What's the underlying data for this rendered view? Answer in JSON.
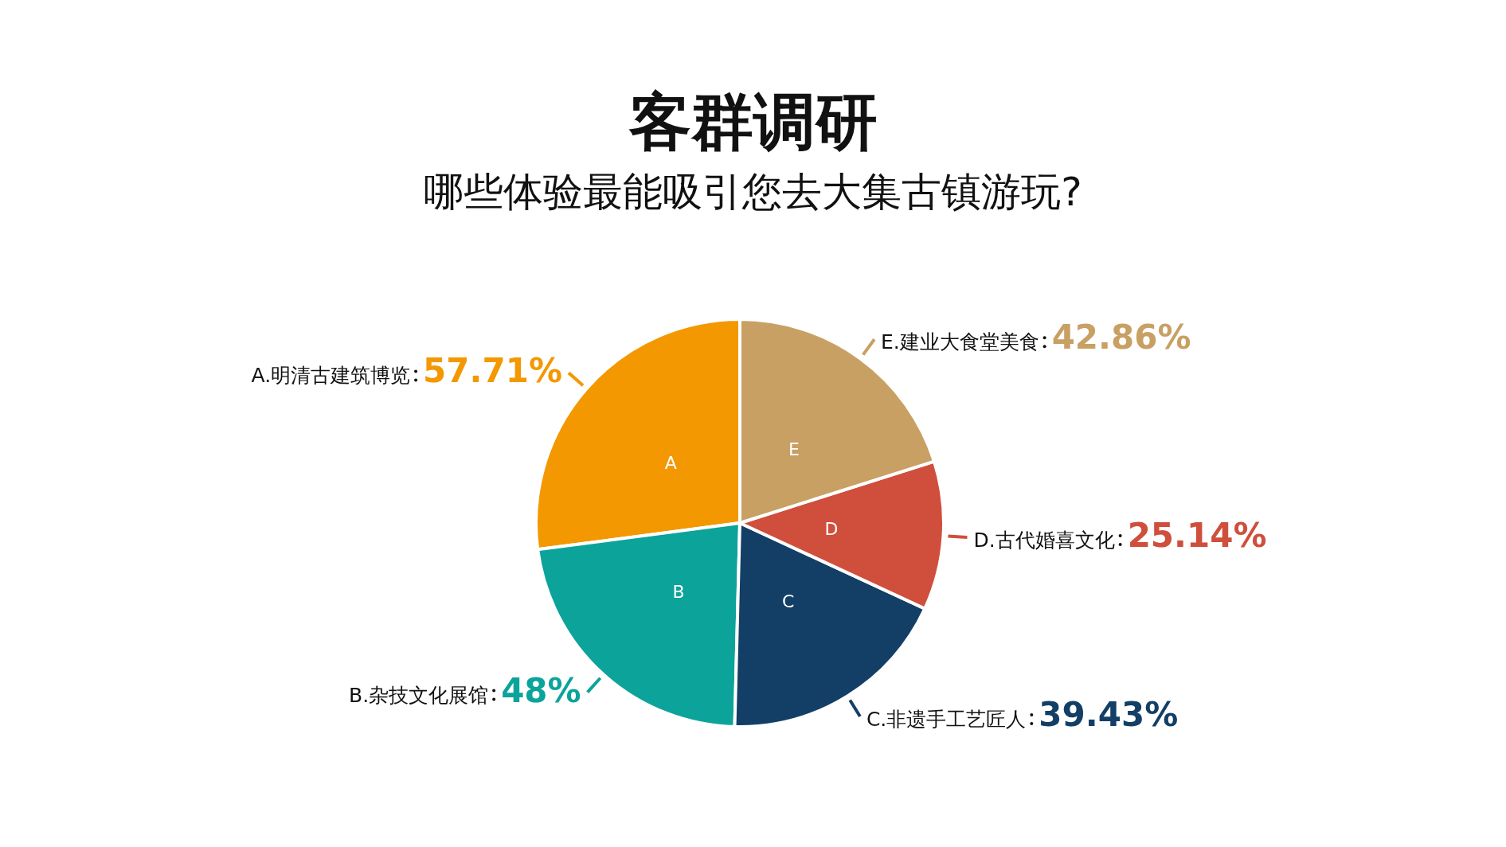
{
  "chart_data": {
    "type": "pie",
    "title": "客群调研",
    "subtitle": "哪些体验最能吸引您去大集古镇游玩?",
    "categories": [
      "A.明清古建筑博览",
      "B.杂技文化展馆",
      "C.非遗手工艺匠人",
      "D.古代婚喜文化",
      "E.建业大食堂美食"
    ],
    "values": [
      57.71,
      48,
      39.43,
      25.14,
      42.86
    ],
    "value_labels": [
      "57.71%",
      "48%",
      "39.43%",
      "25.14%",
      "42.86%"
    ],
    "colors": [
      "#f39800",
      "#0ca39b",
      "#133f66",
      "#cf4f3c",
      "#c8a063"
    ],
    "annotations": [
      {
        "text": "A",
        "x": "A.明清古建筑博览"
      },
      {
        "text": "B",
        "x": "B.杂技文化展馆"
      },
      {
        "text": "C",
        "x": "C.非遗手工艺匠人"
      },
      {
        "text": "D",
        "x": "D.古代婚喜文化"
      },
      {
        "text": "E",
        "x": "E.建业大食堂美食"
      }
    ]
  }
}
